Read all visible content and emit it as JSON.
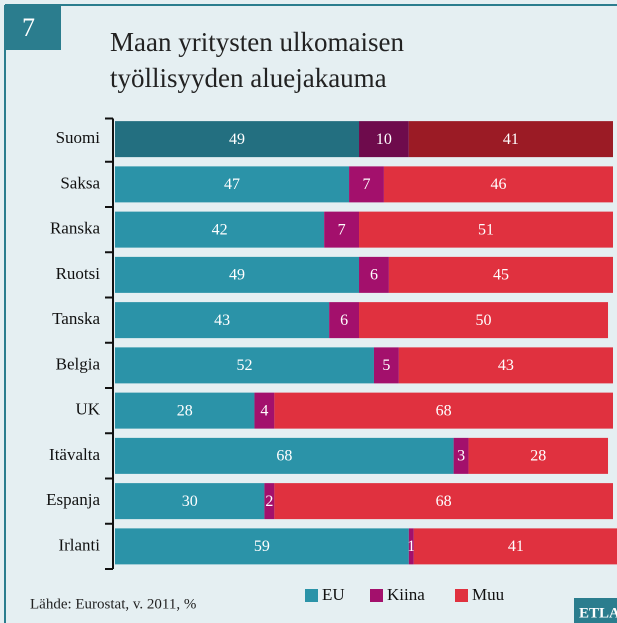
{
  "chart_data": {
    "type": "stacked-bar-horizontal",
    "badge": "7",
    "title_lines": [
      "Maan yritysten ulkomaisen",
      "työllisyyden aluejakauma"
    ],
    "categories": [
      "Suomi",
      "Saksa",
      "Ranska",
      "Ruotsi",
      "Tanska",
      "Belgia",
      "UK",
      "Itävalta",
      "Espanja",
      "Irlanti"
    ],
    "series": [
      {
        "name": "EU",
        "color": "#2b93a8",
        "colors": [
          "#236f80",
          "#2b93a8",
          "#2b93a8",
          "#2b93a8",
          "#2b93a8",
          "#2b93a8",
          "#2b93a8",
          "#2b93a8",
          "#2b93a8",
          "#2b93a8"
        ],
        "values": [
          49,
          47,
          42,
          49,
          43,
          52,
          28,
          68,
          30,
          59
        ]
      },
      {
        "name": "Kiina",
        "color": "#a3106c",
        "colors": [
          "#6e0b4c",
          "#a3106c",
          "#a3106c",
          "#a3106c",
          "#a3106c",
          "#a3106c",
          "#a3106c",
          "#a3106c",
          "#a3106c",
          "#a3106c"
        ],
        "values": [
          10,
          7,
          7,
          6,
          6,
          5,
          4,
          3,
          2,
          1
        ]
      },
      {
        "name": "Muu",
        "color": "#e0313f",
        "colors": [
          "#9b1b25",
          "#e0313f",
          "#e0313f",
          "#e0313f",
          "#e0313f",
          "#e0313f",
          "#e0313f",
          "#e0313f",
          "#e0313f",
          "#e0313f"
        ],
        "values": [
          41,
          46,
          51,
          45,
          50,
          43,
          68,
          28,
          68,
          41
        ]
      }
    ],
    "xlim": [
      0,
      100
    ],
    "source": "Lähde: Eurostat, v. 2011, %",
    "logo": "ETLA"
  }
}
